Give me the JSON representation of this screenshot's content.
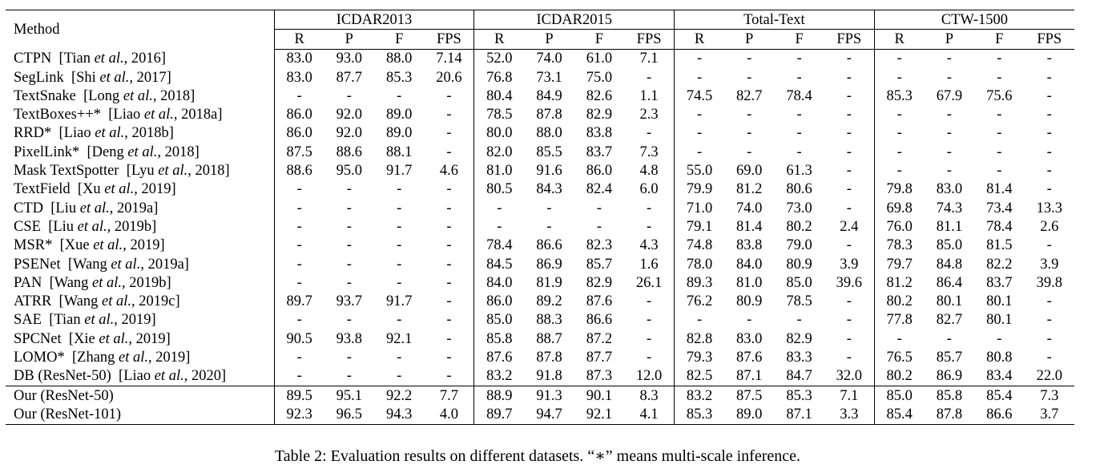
{
  "table": {
    "method_header": "Method",
    "groups": [
      "ICDAR2013",
      "ICDAR2015",
      "Total-Text",
      "CTW-1500"
    ],
    "sub_headers": [
      "R",
      "P",
      "F",
      "FPS"
    ],
    "rows": [
      {
        "name": "CTPN",
        "cite_pre": "[Tian ",
        "cite_etal": "et al.",
        "cite_post": ", 2016]",
        "values": [
          "83.0",
          "93.0",
          "88.0",
          "7.14",
          "52.0",
          "74.0",
          "61.0",
          "7.1",
          "-",
          "-",
          "-",
          "-",
          "-",
          "-",
          "-",
          "-"
        ],
        "bold": []
      },
      {
        "name": "SegLink",
        "cite_pre": "[Shi ",
        "cite_etal": "et al.",
        "cite_post": ", 2017]",
        "values": [
          "83.0",
          "87.7",
          "85.3",
          "20.6",
          "76.8",
          "73.1",
          "75.0",
          "-",
          "-",
          "-",
          "-",
          "-",
          "-",
          "-",
          "-",
          "-"
        ],
        "bold": [
          3
        ]
      },
      {
        "name": "TextSnake",
        "cite_pre": "[Long ",
        "cite_etal": "et al.",
        "cite_post": ", 2018]",
        "values": [
          "-",
          "-",
          "-",
          "-",
          "80.4",
          "84.9",
          "82.6",
          "1.1",
          "74.5",
          "82.7",
          "78.4",
          "-",
          "85.3",
          "67.9",
          "75.6",
          "-"
        ],
        "bold": []
      },
      {
        "name": "TextBoxes++*",
        "cite_pre": "[Liao ",
        "cite_etal": "et al.",
        "cite_post": ", 2018a]",
        "values": [
          "86.0",
          "92.0",
          "89.0",
          "-",
          "78.5",
          "87.8",
          "82.9",
          "2.3",
          "-",
          "-",
          "-",
          "-",
          "-",
          "-",
          "-",
          "-"
        ],
        "bold": []
      },
      {
        "name": "RRD*",
        "cite_pre": "[Liao ",
        "cite_etal": "et al.",
        "cite_post": ", 2018b]",
        "values": [
          "86.0",
          "92.0",
          "89.0",
          "-",
          "80.0",
          "88.0",
          "83.8",
          "-",
          "-",
          "-",
          "-",
          "-",
          "-",
          "-",
          "-",
          "-"
        ],
        "bold": []
      },
      {
        "name": "PixelLink*",
        "cite_pre": "[Deng ",
        "cite_etal": "et al.",
        "cite_post": ", 2018]",
        "values": [
          "87.5",
          "88.6",
          "88.1",
          "-",
          "82.0",
          "85.5",
          "83.7",
          "7.3",
          "-",
          "-",
          "-",
          "-",
          "-",
          "-",
          "-",
          "-"
        ],
        "bold": []
      },
      {
        "name": "Mask TextSpotter",
        "cite_pre": "[Lyu ",
        "cite_etal": "et al.",
        "cite_post": ", 2018]",
        "values": [
          "88.6",
          "95.0",
          "91.7",
          "4.6",
          "81.0",
          "91.6",
          "86.0",
          "4.8",
          "55.0",
          "69.0",
          "61.3",
          "-",
          "-",
          "-",
          "-",
          "-"
        ],
        "bold": []
      },
      {
        "name": "TextField",
        "cite_pre": "[Xu ",
        "cite_etal": "et al.",
        "cite_post": ", 2019]",
        "values": [
          "-",
          "-",
          "-",
          "-",
          "80.5",
          "84.3",
          "82.4",
          "6.0",
          "79.9",
          "81.2",
          "80.6",
          "-",
          "79.8",
          "83.0",
          "81.4",
          "-"
        ],
        "bold": []
      },
      {
        "name": "CTD",
        "cite_pre": "[Liu ",
        "cite_etal": "et al.",
        "cite_post": ", 2019a]",
        "values": [
          "-",
          "-",
          "-",
          "-",
          "-",
          "-",
          "-",
          "-",
          "71.0",
          "74.0",
          "73.0",
          "-",
          "69.8",
          "74.3",
          "73.4",
          "13.3"
        ],
        "bold": []
      },
      {
        "name": "CSE",
        "cite_pre": "[Liu ",
        "cite_etal": "et al.",
        "cite_post": ", 2019b]",
        "values": [
          "-",
          "-",
          "-",
          "-",
          "-",
          "-",
          "-",
          "-",
          "79.1",
          "81.4",
          "80.2",
          "2.4",
          "76.0",
          "81.1",
          "78.4",
          "2.6"
        ],
        "bold": []
      },
      {
        "name": "MSR*",
        "cite_pre": "[Xue ",
        "cite_etal": "et al.",
        "cite_post": ", 2019]",
        "values": [
          "-",
          "-",
          "-",
          "-",
          "78.4",
          "86.6",
          "82.3",
          "4.3",
          "74.8",
          "83.8",
          "79.0",
          "-",
          "78.3",
          "85.0",
          "81.5",
          "-"
        ],
        "bold": []
      },
      {
        "name": "PSENet",
        "cite_pre": "[Wang ",
        "cite_etal": "et al.",
        "cite_post": ", 2019a]",
        "values": [
          "-",
          "-",
          "-",
          "-",
          "84.5",
          "86.9",
          "85.7",
          "1.6",
          "78.0",
          "84.0",
          "80.9",
          "3.9",
          "79.7",
          "84.8",
          "82.2",
          "3.9"
        ],
        "bold": []
      },
      {
        "name": "PAN",
        "cite_pre": "[Wang ",
        "cite_etal": "et al.",
        "cite_post": ", 2019b]",
        "values": [
          "-",
          "-",
          "-",
          "-",
          "84.0",
          "81.9",
          "82.9",
          "26.1",
          "89.3",
          "81.0",
          "85.0",
          "39.6",
          "81.2",
          "86.4",
          "83.7",
          "39.8"
        ],
        "bold": [
          7,
          8,
          11,
          15
        ]
      },
      {
        "name": "ATRR",
        "cite_pre": "[Wang ",
        "cite_etal": "et al.",
        "cite_post": ", 2019c]",
        "values": [
          "89.7",
          "93.7",
          "91.7",
          "-",
          "86.0",
          "89.2",
          "87.6",
          "-",
          "76.2",
          "80.9",
          "78.5",
          "-",
          "80.2",
          "80.1",
          "80.1",
          "-"
        ],
        "bold": []
      },
      {
        "name": "SAE",
        "cite_pre": "[Tian ",
        "cite_etal": "et al.",
        "cite_post": ", 2019]",
        "values": [
          "-",
          "-",
          "-",
          "-",
          "85.0",
          "88.3",
          "86.6",
          "-",
          "-",
          "-",
          "-",
          "-",
          "77.8",
          "82.7",
          "80.1",
          "-"
        ],
        "bold": []
      },
      {
        "name": "SPCNet",
        "cite_pre": "[Xie ",
        "cite_etal": "et al.",
        "cite_post": ", 2019]",
        "values": [
          "90.5",
          "93.8",
          "92.1",
          "-",
          "85.8",
          "88.7",
          "87.2",
          "-",
          "82.8",
          "83.0",
          "82.9",
          "-",
          "-",
          "-",
          "-",
          "-"
        ],
        "bold": []
      },
      {
        "name": "LOMO*",
        "cite_pre": "[Zhang ",
        "cite_etal": "et al.",
        "cite_post": ", 2019]",
        "values": [
          "-",
          "-",
          "-",
          "-",
          "87.6",
          "87.8",
          "87.7",
          "-",
          "79.3",
          "87.6",
          "83.3",
          "-",
          "76.5",
          "85.7",
          "80.8",
          "-"
        ],
        "bold": []
      },
      {
        "name": "DB (ResNet-50)",
        "cite_pre": "[Liao ",
        "cite_etal": "et al.",
        "cite_post": ", 2020]",
        "values": [
          "-",
          "-",
          "-",
          "-",
          "83.2",
          "91.8",
          "87.3",
          "12.0",
          "82.5",
          "87.1",
          "84.7",
          "32.0",
          "80.2",
          "86.9",
          "83.4",
          "22.0"
        ],
        "bold": []
      },
      {
        "name": "Our (ResNet-50)",
        "cite_pre": "",
        "cite_etal": "",
        "cite_post": "",
        "values": [
          "89.5",
          "95.1",
          "92.2",
          "7.7",
          "88.9",
          "91.3",
          "90.1",
          "8.3",
          "83.2",
          "87.5",
          "85.3",
          "7.1",
          "85.0",
          "85.8",
          "85.4",
          "7.3"
        ],
        "bold": [],
        "ours_first": true
      },
      {
        "name": "Our (ResNet-101)",
        "cite_pre": "",
        "cite_etal": "",
        "cite_post": "",
        "values": [
          "92.3",
          "96.5",
          "94.3",
          "4.0",
          "89.7",
          "94.7",
          "92.1",
          "4.1",
          "85.3",
          "89.0",
          "87.1",
          "3.3",
          "85.4",
          "87.8",
          "86.6",
          "3.7"
        ],
        "bold": [
          0,
          1,
          2,
          4,
          5,
          6,
          9,
          10,
          12,
          13,
          14
        ]
      }
    ]
  },
  "caption": "Table 2: Evaluation results on different datasets. “∗” means multi-scale inference."
}
